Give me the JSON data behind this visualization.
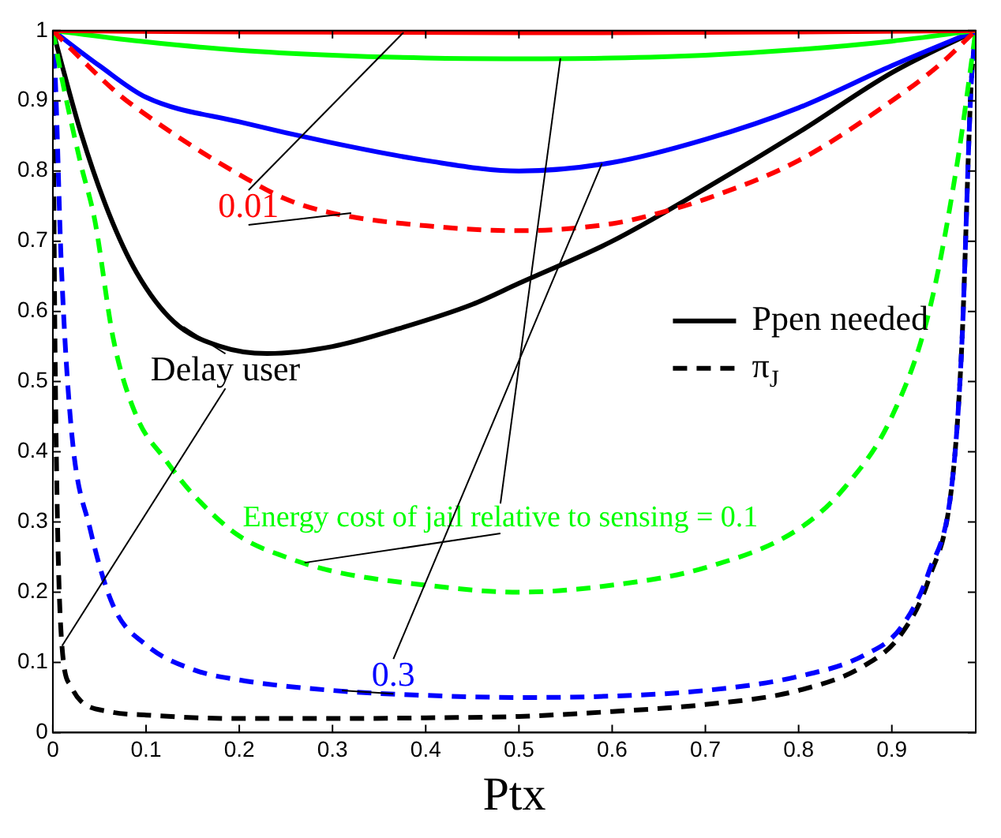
{
  "chart_data": {
    "type": "line",
    "xlabel": "Ptx",
    "xlim": [
      0,
      0.99
    ],
    "xticks": [
      0,
      0.1,
      0.2,
      0.3,
      0.4,
      0.5,
      0.6,
      0.7,
      0.8,
      0.9
    ],
    "ylim": [
      0,
      1
    ],
    "yticks": [
      0,
      0.1,
      0.2,
      0.3,
      0.4,
      0.5,
      0.6,
      0.7,
      0.8,
      0.9,
      1
    ],
    "grid": false,
    "legend": "right",
    "marker": "none",
    "series": [
      {
        "color": "#ff0000",
        "line_style": "solid",
        "x": [
          0,
          0.2,
          0.5,
          0.8,
          0.99
        ],
        "values": [
          1,
          0.998,
          0.997,
          0.998,
          1
        ]
      },
      {
        "color": "#ff0000",
        "line_style": "dashed",
        "x": [
          0,
          0.03,
          0.07,
          0.1,
          0.15,
          0.2,
          0.25,
          0.3,
          0.4,
          0.5,
          0.6,
          0.65,
          0.7,
          0.8,
          0.9,
          0.95,
          0.99
        ],
        "values": [
          1,
          0.96,
          0.91,
          0.88,
          0.835,
          0.795,
          0.76,
          0.74,
          0.722,
          0.715,
          0.725,
          0.74,
          0.76,
          0.815,
          0.9,
          0.95,
          1
        ]
      },
      {
        "color": "#00ff00",
        "line_style": "solid",
        "x": [
          0,
          0.1,
          0.2,
          0.3,
          0.4,
          0.5,
          0.6,
          0.7,
          0.8,
          0.9,
          0.99
        ],
        "values": [
          1,
          0.984,
          0.972,
          0.965,
          0.961,
          0.96,
          0.961,
          0.965,
          0.973,
          0.985,
          1
        ]
      },
      {
        "color": "#00ff00",
        "line_style": "dashed",
        "x": [
          0,
          0.01,
          0.03,
          0.045,
          0.065,
          0.09,
          0.12,
          0.15,
          0.2,
          0.25,
          0.3,
          0.4,
          0.5,
          0.6,
          0.7,
          0.8,
          0.85,
          0.9,
          0.94,
          0.97,
          0.99
        ],
        "values": [
          1,
          0.93,
          0.81,
          0.73,
          0.56,
          0.45,
          0.39,
          0.34,
          0.28,
          0.25,
          0.23,
          0.21,
          0.2,
          0.21,
          0.235,
          0.29,
          0.35,
          0.45,
          0.6,
          0.81,
          1
        ]
      },
      {
        "color": "#0000ff",
        "line_style": "solid",
        "x": [
          0,
          0.05,
          0.1,
          0.2,
          0.3,
          0.4,
          0.5,
          0.6,
          0.7,
          0.8,
          0.9,
          0.99
        ],
        "values": [
          1,
          0.95,
          0.905,
          0.87,
          0.84,
          0.815,
          0.8,
          0.812,
          0.845,
          0.89,
          0.95,
          1
        ]
      },
      {
        "color": "#0000ff",
        "line_style": "dashed",
        "x": [
          0,
          0.003,
          0.009,
          0.02,
          0.04,
          0.065,
          0.1,
          0.15,
          0.2,
          0.3,
          0.4,
          0.5,
          0.6,
          0.7,
          0.8,
          0.87,
          0.91,
          0.94,
          0.965,
          0.975,
          0.985,
          0.99
        ],
        "values": [
          1,
          0.92,
          0.67,
          0.43,
          0.29,
          0.18,
          0.125,
          0.09,
          0.075,
          0.06,
          0.053,
          0.05,
          0.052,
          0.06,
          0.08,
          0.11,
          0.15,
          0.23,
          0.36,
          0.55,
          0.92,
          1
        ]
      },
      {
        "name": "Ppen needed",
        "color": "#000000",
        "line_style": "solid",
        "x": [
          0,
          0.01,
          0.03,
          0.06,
          0.09,
          0.13,
          0.18,
          0.23,
          0.3,
          0.37,
          0.45,
          0.5,
          0.6,
          0.7,
          0.8,
          0.9,
          0.99
        ],
        "values": [
          1,
          0.95,
          0.855,
          0.74,
          0.655,
          0.585,
          0.55,
          0.54,
          0.55,
          0.575,
          0.61,
          0.64,
          0.7,
          0.775,
          0.855,
          0.94,
          1
        ]
      },
      {
        "name": "π$_{J}$",
        "color": "#000000",
        "line_style": "dashed",
        "x": [
          0,
          0.002,
          0.005,
          0.01,
          0.02,
          0.03,
          0.06,
          0.1,
          0.2,
          0.3,
          0.4,
          0.5,
          0.6,
          0.7,
          0.8,
          0.87,
          0.91,
          0.94,
          0.965,
          0.975,
          0.985,
          0.99
        ],
        "values": [
          1,
          0.6,
          0.3,
          0.12,
          0.065,
          0.045,
          0.03,
          0.025,
          0.02,
          0.02,
          0.021,
          0.023,
          0.03,
          0.04,
          0.06,
          0.095,
          0.14,
          0.22,
          0.36,
          0.55,
          0.92,
          1
        ]
      }
    ],
    "annotations": [
      {
        "text": "0.01",
        "x": 0.32,
        "y": 0.74
      },
      {
        "text": "Energy cost of jail relative to sensing = 0.1",
        "x": 0.27,
        "y": 0.242
      },
      {
        "text": "0.3",
        "x": 0.31,
        "y": 0.06
      },
      {
        "text": "Delay user",
        "x": 0.14,
        "y": 0.578
      }
    ]
  }
}
